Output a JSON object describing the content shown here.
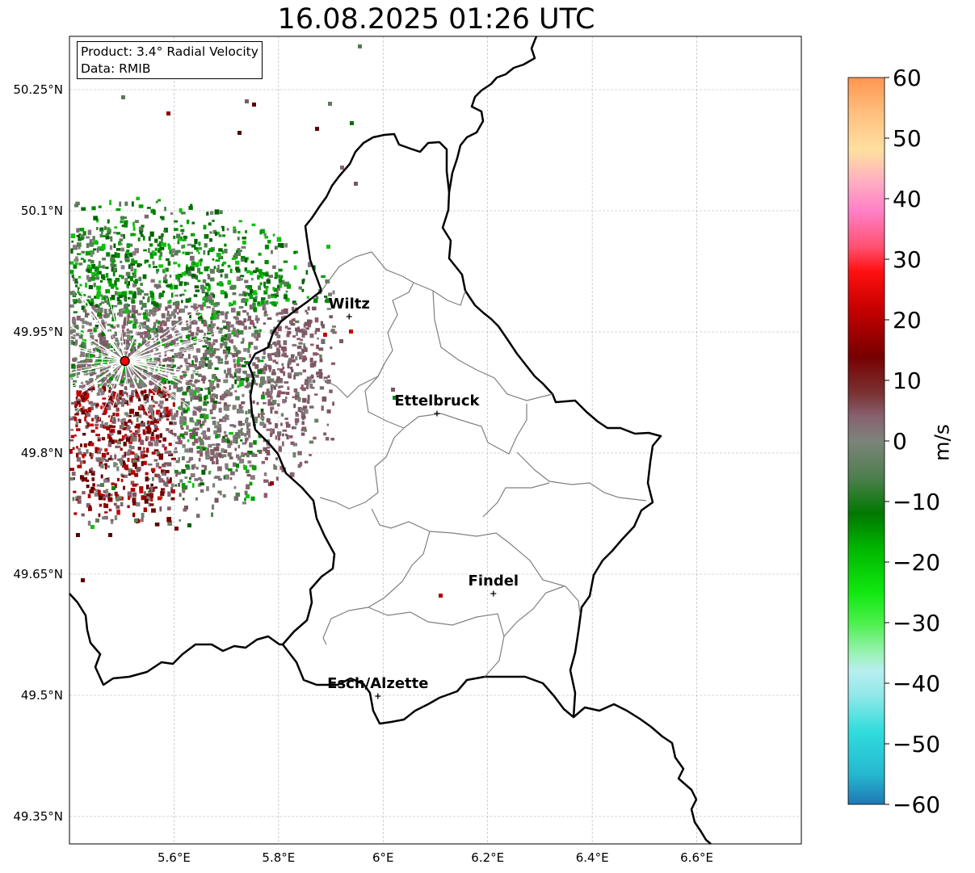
{
  "title": "16.08.2025 01:26 UTC",
  "info": {
    "product": "Product: 3.4° Radial Velocity",
    "data": "Data: RMIB"
  },
  "map": {
    "lon_range": [
      5.4,
      6.8
    ],
    "lat_range": [
      49.316,
      50.316
    ],
    "x_ticks": [
      {
        "v": 5.6,
        "label": "5.6°E"
      },
      {
        "v": 5.8,
        "label": "5.8°E"
      },
      {
        "v": 6.0,
        "label": "6°E"
      },
      {
        "v": 6.2,
        "label": "6.2°E"
      },
      {
        "v": 6.4,
        "label": "6.4°E"
      },
      {
        "v": 6.6,
        "label": "6.6°E"
      }
    ],
    "y_ticks": [
      {
        "v": 50.25,
        "label": "50.25°N"
      },
      {
        "v": 50.1,
        "label": "50.1°N"
      },
      {
        "v": 49.95,
        "label": "49.95°N"
      },
      {
        "v": 49.8,
        "label": "49.8°N"
      },
      {
        "v": 49.65,
        "label": "49.65°N"
      },
      {
        "v": 49.5,
        "label": "49.5°N"
      },
      {
        "v": 49.35,
        "label": "49.35°N"
      }
    ],
    "grid": true,
    "radar_site": {
      "lon": 5.506,
      "lat": 49.914
    },
    "cities": [
      {
        "name": "Wiltz",
        "lon": 5.935,
        "lat": 49.969
      },
      {
        "name": "Ettelbruck",
        "lon": 6.103,
        "lat": 49.849
      },
      {
        "name": "Findel",
        "lon": 6.211,
        "lat": 49.626
      },
      {
        "name": "Esch/Alzette",
        "lon": 5.99,
        "lat": 49.499
      }
    ]
  },
  "colorbar": {
    "label": "m/s",
    "min": -60,
    "max": 60,
    "ticks": [
      {
        "v": 60,
        "label": "60"
      },
      {
        "v": 50,
        "label": "50"
      },
      {
        "v": 40,
        "label": "40"
      },
      {
        "v": 30,
        "label": "30"
      },
      {
        "v": 20,
        "label": "20"
      },
      {
        "v": 10,
        "label": "10"
      },
      {
        "v": 0,
        "label": "0"
      },
      {
        "v": -10,
        "label": "−10"
      },
      {
        "v": -20,
        "label": "−20"
      },
      {
        "v": -30,
        "label": "−30"
      },
      {
        "v": -40,
        "label": "−40"
      },
      {
        "v": -50,
        "label": "−50"
      },
      {
        "v": -60,
        "label": "−60"
      }
    ],
    "stops": [
      {
        "v": -60,
        "color": "#1f78b4"
      },
      {
        "v": -55,
        "color": "#25b8d0"
      },
      {
        "v": -48,
        "color": "#30dcdc"
      },
      {
        "v": -42,
        "color": "#90e8e8"
      },
      {
        "v": -38,
        "color": "#b8eef0"
      },
      {
        "v": -35,
        "color": "#9af2b4"
      },
      {
        "v": -30,
        "color": "#4cf04c"
      },
      {
        "v": -25,
        "color": "#10e810"
      },
      {
        "v": -18,
        "color": "#00b800"
      },
      {
        "v": -12,
        "color": "#007800"
      },
      {
        "v": -6,
        "color": "#4e7f4e"
      },
      {
        "v": 0,
        "color": "#7c847a"
      },
      {
        "v": 4,
        "color": "#866270"
      },
      {
        "v": 8,
        "color": "#7a3030"
      },
      {
        "v": 14,
        "color": "#780000"
      },
      {
        "v": 22,
        "color": "#c80000"
      },
      {
        "v": 28,
        "color": "#ff1010"
      },
      {
        "v": 32,
        "color": "#ff5070"
      },
      {
        "v": 38,
        "color": "#ff80c8"
      },
      {
        "v": 43,
        "color": "#ffb0c0"
      },
      {
        "v": 48,
        "color": "#ffe0a0"
      },
      {
        "v": 54,
        "color": "#ffc080"
      },
      {
        "v": 60,
        "color": "#ff9650"
      }
    ]
  }
}
